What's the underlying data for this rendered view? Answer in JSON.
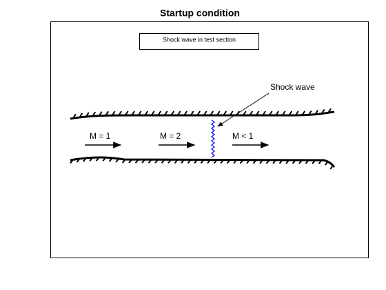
{
  "title": "Startup condition",
  "legend_box": "Shock wave in test section",
  "annotation": "Shock wave",
  "labels": [
    "M = 1",
    "M = 2",
    "M < 1"
  ]
}
